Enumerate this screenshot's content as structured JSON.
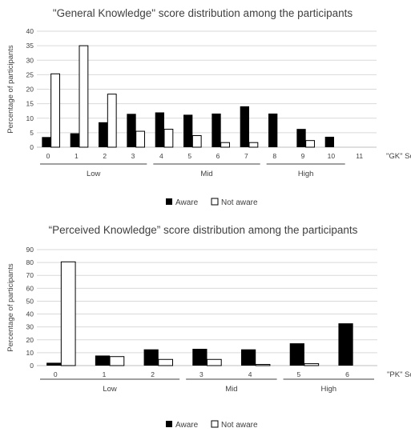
{
  "chart_data": [
    {
      "type": "bar",
      "title": "\"General Knowledge\" score distribution among the participants",
      "xlabel": "\"GK\" Score",
      "ylabel": "Percentage of participants",
      "ylim": [
        0,
        40
      ],
      "yticks": [
        0,
        5,
        10,
        15,
        20,
        25,
        30,
        35,
        40
      ],
      "grid": true,
      "categories": [
        "0",
        "1",
        "2",
        "3",
        "4",
        "5",
        "6",
        "7",
        "8",
        "9",
        "10",
        "11"
      ],
      "series": [
        {
          "name": "Aware",
          "color": "#000000",
          "values": [
            3.5,
            4.8,
            8.6,
            11.5,
            12.0,
            11.2,
            11.6,
            14.1,
            11.6,
            6.3,
            3.6,
            0
          ]
        },
        {
          "name": "Not aware",
          "color": "#ffffff",
          "values": [
            25.3,
            35.0,
            18.3,
            5.5,
            6.2,
            4.0,
            1.6,
            1.6,
            0,
            2.3,
            0,
            0
          ]
        }
      ],
      "groups": [
        {
          "label": "Low",
          "from": 0,
          "to": 3
        },
        {
          "label": "Mid",
          "from": 4,
          "to": 7
        },
        {
          "label": "High",
          "from": 8,
          "to": 10
        }
      ],
      "legend": {
        "placement": "bottom"
      }
    },
    {
      "type": "bar",
      "title": "“Perceived Knowledge” score distribution among the participants",
      "xlabel": "\"PK\" Score",
      "ylabel": "Percentage of participants",
      "ylim": [
        0,
        90
      ],
      "yticks": [
        0,
        10,
        20,
        30,
        40,
        50,
        60,
        70,
        80,
        90
      ],
      "grid": true,
      "categories": [
        "0",
        "1",
        "2",
        "3",
        "4",
        "5",
        "6"
      ],
      "series": [
        {
          "name": "Aware",
          "color": "#000000",
          "values": [
            2.2,
            7.8,
            12.6,
            13.0,
            12.6,
            17.3,
            32.8
          ]
        },
        {
          "name": "Not aware",
          "color": "#ffffff",
          "values": [
            80.5,
            7.0,
            4.8,
            4.8,
            0.9,
            1.5,
            0
          ]
        }
      ],
      "groups": [
        {
          "label": "Low",
          "from": 0,
          "to": 2
        },
        {
          "label": "Mid",
          "from": 3,
          "to": 4
        },
        {
          "label": "High",
          "from": 5,
          "to": 6
        }
      ],
      "legend": {
        "placement": "bottom"
      }
    }
  ]
}
